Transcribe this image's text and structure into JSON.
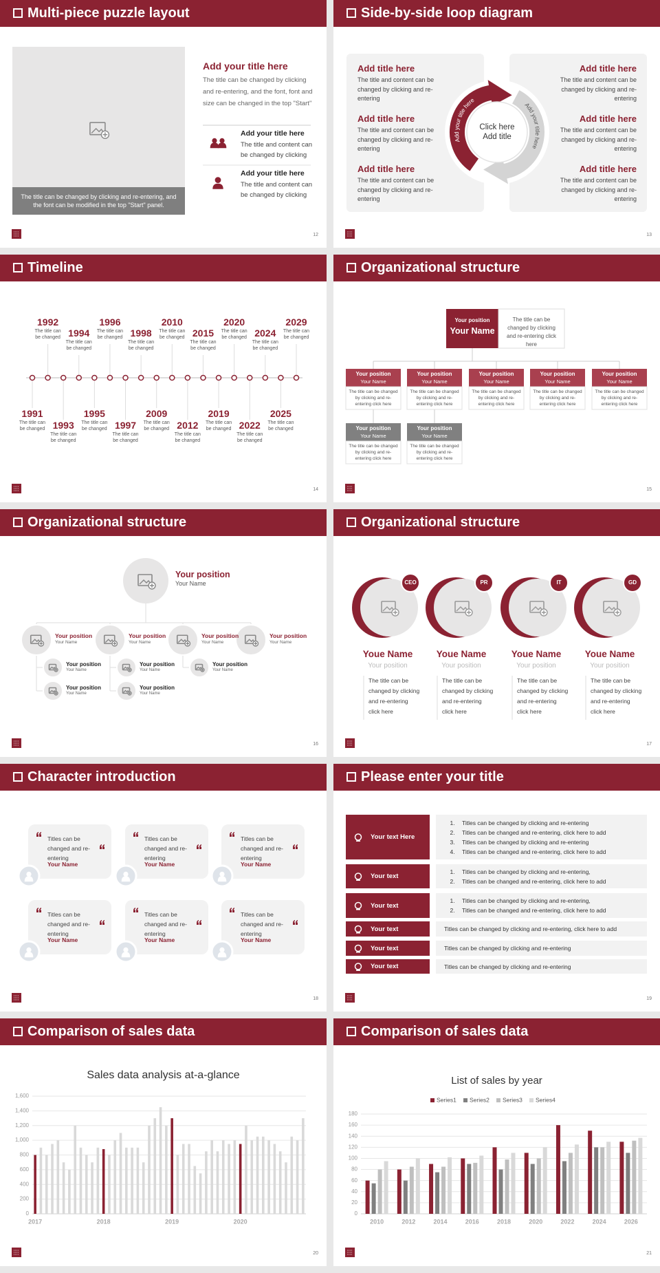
{
  "slides": [
    {
      "title": "Multi-piece puzzle layout",
      "page": "12",
      "caption": "The title can be changed by clicking and re-entering, and the font can be modified in the top \"Start\" panel.",
      "heading": "Add your title here",
      "text": "The title can be changed by clicking and re-entering, and the font, font and size can be changed in the top \"Start\"",
      "items": [
        {
          "title": "Add your title here",
          "text": "The title and content can be changed by clicking"
        },
        {
          "title": "Add your title here",
          "text": "The title and content can be changed by clicking"
        }
      ]
    },
    {
      "title": "Side-by-side loop diagram",
      "page": "13",
      "left": [
        {
          "title": "Add title here",
          "text": "The title and content can be changed by clicking and re-entering"
        },
        {
          "title": "Add title here",
          "text": "The title and content can be changed by clicking and re-entering"
        },
        {
          "title": "Add title here",
          "text": "The title and content can be changed by clicking and re-entering"
        }
      ],
      "right": [
        {
          "title": "Add title here",
          "text": "The title and content can be changed by clicking and re-entering"
        },
        {
          "title": "Add title here",
          "text": "The title and content can be changed by clicking and re-entering"
        },
        {
          "title": "Add title here",
          "text": "The title and content can be changed by clicking and re-entering"
        }
      ],
      "center": [
        "Click here",
        "Add title"
      ],
      "arc_labels": [
        "Add your title here",
        "Add your title here"
      ]
    },
    {
      "title": "Timeline",
      "page": "14",
      "events": [
        {
          "year": "1991",
          "text": "The title can be changed"
        },
        {
          "year": "1992",
          "text": "The title can be changed"
        },
        {
          "year": "1993",
          "text": "The title can be changed"
        },
        {
          "year": "1994",
          "text": "The title can be changed"
        },
        {
          "year": "1995",
          "text": "The title can be changed"
        },
        {
          "year": "1996",
          "text": "The title can be changed"
        },
        {
          "year": "1997",
          "text": "The title can be changed"
        },
        {
          "year": "1998",
          "text": "The title can be changed"
        },
        {
          "year": "2009",
          "text": "The title can be changed"
        },
        {
          "year": "2010",
          "text": "The title can be changed"
        },
        {
          "year": "2012",
          "text": "The title can be changed"
        },
        {
          "year": "2015",
          "text": "The title can be changed"
        },
        {
          "year": "2019",
          "text": "The title can be changed"
        },
        {
          "year": "2020",
          "text": "The title can be changed"
        },
        {
          "year": "2022",
          "text": "The title can be changed"
        },
        {
          "year": "2024",
          "text": "The title can be changed"
        },
        {
          "year": "2025",
          "text": "The title can be changed"
        },
        {
          "year": "2029",
          "text": "The title can be changed"
        }
      ]
    },
    {
      "title": "Organizational structure",
      "page": "15",
      "top": {
        "position": "Your position",
        "name": "Your Name",
        "text": "The title can be changed by clicking and re-entering click here"
      },
      "boxes": [
        {
          "position": "Your position",
          "name": "Your Name",
          "text": "The title can be changed by clicking and re-entering click here"
        },
        {
          "position": "Your position",
          "name": "Your Name",
          "text": "The title can be changed by clicking and re-entering click here"
        },
        {
          "position": "Your position",
          "name": "Your Name",
          "text": "The title can be changed by clicking and re-entering click here"
        },
        {
          "position": "Your position",
          "name": "Your Name",
          "text": "The title can be changed by clicking and re-entering click here"
        },
        {
          "position": "Your position",
          "name": "Your Name",
          "text": "The title can be changed by clicking and re-entering click here"
        }
      ],
      "sub_boxes": [
        {
          "position": "Your position",
          "name": "Your Name",
          "text": "The title can be changed by clicking and re-entering click here"
        },
        {
          "position": "Your position",
          "name": "Your Name",
          "text": "The title can be changed by clicking and re-entering click here"
        }
      ]
    },
    {
      "title": "Organizational structure",
      "page": "16",
      "top": {
        "position": "Your position",
        "name": "Your Name"
      },
      "members": [
        {
          "position": "Your position",
          "name": "Your Name",
          "subs": [
            {
              "position": "Your position",
              "name": "Your Name"
            },
            {
              "position": "Your position",
              "name": "Your Name"
            }
          ]
        },
        {
          "position": "Your position",
          "name": "Your Name",
          "subs": [
            {
              "position": "Your position",
              "name": "Your Name"
            },
            {
              "position": "Your position",
              "name": "Your Name"
            }
          ]
        },
        {
          "position": "Your position",
          "name": "Your Name",
          "subs": [
            {
              "position": "Your position",
              "name": "Your Name"
            }
          ]
        },
        {
          "position": "Your position",
          "name": "Your Name",
          "subs": []
        }
      ]
    },
    {
      "title": "Organizational structure",
      "page": "17",
      "cards": [
        {
          "badge": "CEO",
          "name": "Youe Name",
          "position": "Your position",
          "text": "The title can be changed by clicking and re-entering click here"
        },
        {
          "badge": "PR",
          "name": "Youe Name",
          "position": "Your position",
          "text": "The title can be changed by clicking and re-entering click here"
        },
        {
          "badge": "IT",
          "name": "Youe Name",
          "position": "Your position",
          "text": "The title can be changed by clicking and re-entering click here"
        },
        {
          "badge": "GD",
          "name": "Youe Name",
          "position": "Your position",
          "text": "The title can be changed by clicking and re-entering click here"
        }
      ]
    },
    {
      "title": "Character introduction",
      "page": "18",
      "cards": [
        {
          "text": "Titles can be changed and re-entering",
          "name": "Your Name"
        },
        {
          "text": "Titles can be changed and re-entering",
          "name": "Your Name"
        },
        {
          "text": "Titles can be changed and re-entering",
          "name": "Your Name"
        },
        {
          "text": "Titles can be changed and re-entering",
          "name": "Your Name"
        },
        {
          "text": "Titles can be changed and re-entering",
          "name": "Your Name"
        },
        {
          "text": "Titles can be changed and re-entering",
          "name": "Your Name"
        }
      ]
    },
    {
      "title": "Please enter your title",
      "page": "19",
      "rows": [
        {
          "label": "Your text Here",
          "items": [
            "Titles can be changed by clicking and re-entering",
            "Titles can be changed and re-entering, click here to add",
            "Titles can be changed by clicking and re-entering",
            "Titles can be changed and re-entering, click here to add"
          ]
        },
        {
          "label": "Your text",
          "items": [
            "Titles can be changed by clicking and re-entering,",
            "Titles can be changed and re-entering, click here to add"
          ]
        },
        {
          "label": "Your text",
          "items": [
            "Titles can be changed by clicking and re-entering,",
            "Titles can be changed and re-entering, click here to add"
          ]
        },
        {
          "label": "Your text",
          "text": "Titles can be changed by clicking and re-entering, click here to add"
        },
        {
          "label": "Your text",
          "text": "Titles can be changed by clicking and re-entering"
        },
        {
          "label": "Your text",
          "text": "Titles can be changed by clicking and re-entering"
        }
      ]
    },
    {
      "title": "Comparison of sales data",
      "page": "20",
      "chart_data": {
        "type": "bar",
        "title": "Sales data analysis at-a-glance",
        "categories": [
          "2017",
          null,
          null,
          null,
          null,
          null,
          null,
          null,
          null,
          null,
          null,
          null,
          "2018",
          null,
          null,
          null,
          null,
          null,
          null,
          null,
          null,
          null,
          null,
          null,
          "2019",
          null,
          null,
          null,
          null,
          null,
          null,
          null,
          null,
          null,
          null,
          null,
          "2020",
          null,
          null,
          null,
          null,
          null,
          null,
          null,
          null,
          null,
          null,
          null
        ],
        "values": [
          800,
          900,
          800,
          950,
          1000,
          700,
          600,
          1200,
          900,
          800,
          700,
          900,
          880,
          800,
          1000,
          1100,
          900,
          900,
          900,
          700,
          1200,
          1300,
          1450,
          1200,
          1300,
          800,
          950,
          950,
          650,
          550,
          850,
          1000,
          850,
          1000,
          950,
          1000,
          950,
          1200,
          1000,
          1050,
          1050,
          1000,
          950,
          850,
          700,
          1050,
          1000,
          1300
        ],
        "colors": [
          "#8b2232",
          "#d9d9d9",
          "#d9d9d9",
          "#d9d9d9",
          "#d9d9d9",
          "#d9d9d9",
          "#d9d9d9",
          "#d9d9d9",
          "#d9d9d9",
          "#d9d9d9",
          "#d9d9d9",
          "#d9d9d9",
          "#8b2232",
          "#d9d9d9",
          "#d9d9d9",
          "#d9d9d9",
          "#d9d9d9",
          "#d9d9d9",
          "#d9d9d9",
          "#d9d9d9",
          "#d9d9d9",
          "#d9d9d9",
          "#d9d9d9",
          "#d9d9d9",
          "#8b2232",
          "#d9d9d9",
          "#d9d9d9",
          "#d9d9d9",
          "#d9d9d9",
          "#d9d9d9",
          "#d9d9d9",
          "#d9d9d9",
          "#d9d9d9",
          "#d9d9d9",
          "#d9d9d9",
          "#d9d9d9",
          "#8b2232",
          "#d9d9d9",
          "#d9d9d9",
          "#d9d9d9",
          "#d9d9d9",
          "#d9d9d9",
          "#d9d9d9",
          "#d9d9d9",
          "#d9d9d9",
          "#d9d9d9",
          "#d9d9d9",
          "#d9d9d9"
        ],
        "ylim": [
          0,
          1600
        ],
        "yticks": [
          0,
          200,
          400,
          600,
          800,
          {
            "value": 1000,
            "label": "1,000"
          },
          {
            "value": 1200,
            "label": "1,200"
          },
          {
            "value": 1400,
            "label": "1,400"
          },
          {
            "value": 1600,
            "label": "1,600"
          }
        ],
        "grid": true
      }
    },
    {
      "title": "Comparison of sales data",
      "page": "21",
      "chart_data": {
        "type": "bar",
        "title": "List of sales by year",
        "categories": [
          "2010",
          "2012",
          "2014",
          "2016",
          "2018",
          "2020",
          "2022",
          "2024",
          "2026"
        ],
        "series": [
          {
            "name": "Series1",
            "color": "#8b2232",
            "values": [
              60,
              80,
              90,
              100,
              120,
              110,
              160,
              150,
              130
            ]
          },
          {
            "name": "Series2",
            "color": "#808080",
            "values": [
              55,
              60,
              75,
              90,
              80,
              90,
              95,
              120,
              110
            ]
          },
          {
            "name": "Series3",
            "color": "#bfbfbf",
            "values": [
              80,
              85,
              85,
              92,
              98,
              100,
              110,
              120,
              132
            ]
          },
          {
            "name": "Series4",
            "color": "#d9d9d9",
            "values": [
              95,
              100,
              102,
              105,
              110,
              120,
              125,
              130,
              137
            ]
          }
        ],
        "ylim": [
          0,
          180
        ],
        "yticks": [
          0,
          20,
          40,
          60,
          80,
          100,
          120,
          140,
          160,
          180
        ],
        "grid": true,
        "legend": "top"
      }
    }
  ]
}
